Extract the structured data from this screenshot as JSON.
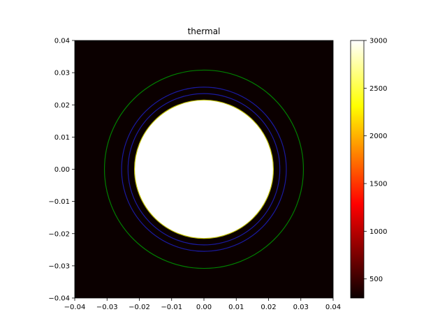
{
  "chart_data": {
    "type": "heatmap",
    "title": "thermal",
    "xlabel": "",
    "ylabel": "",
    "xlim": [
      -0.04,
      0.04
    ],
    "ylim": [
      -0.04,
      0.04
    ],
    "xticks": [
      "−0.04",
      "−0.03",
      "−0.02",
      "−0.01",
      "0.00",
      "0.01",
      "0.02",
      "0.03",
      "0.04"
    ],
    "yticks": [
      "−0.04",
      "−0.03",
      "−0.02",
      "−0.01",
      "0.00",
      "0.01",
      "0.02",
      "0.03",
      "0.04"
    ],
    "xtick_values": [
      -0.04,
      -0.03,
      -0.02,
      -0.01,
      0.0,
      0.01,
      0.02,
      0.03,
      0.04
    ],
    "ytick_values": [
      -0.04,
      -0.03,
      -0.02,
      -0.01,
      0.0,
      0.01,
      0.02,
      0.03,
      0.04
    ],
    "colormap": "hot",
    "background_color": "#0b0000",
    "hot_region": {
      "center": [
        0.0,
        0.0
      ],
      "radius": 0.0215,
      "value": 3000
    },
    "contours": [
      {
        "radius": 0.0215,
        "color": "#bfbf00"
      },
      {
        "radius": 0.0235,
        "color": "#1a1aa0"
      },
      {
        "radius": 0.0255,
        "color": "#1a1aa0"
      },
      {
        "radius": 0.0308,
        "color": "#008000"
      }
    ],
    "colorbar": {
      "min": 300,
      "max": 3000,
      "ticks": [
        500,
        1000,
        1500,
        2000,
        2500,
        3000
      ],
      "tick_labels": [
        "500",
        "1000",
        "1500",
        "2000",
        "2500",
        "3000"
      ]
    },
    "grid": false
  }
}
